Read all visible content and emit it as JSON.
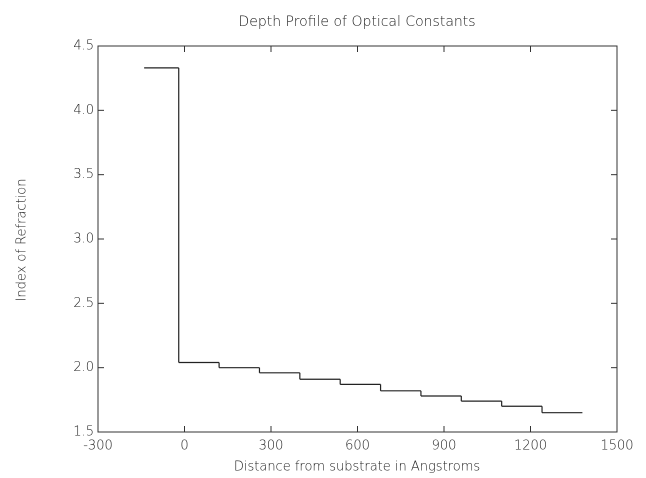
{
  "chart_data": {
    "type": "step",
    "title": "Depth Profile of Optical Constants",
    "x_label": "Distance from substrate in Angstroms",
    "y_label": "Index of Refraction",
    "edges": [
      -140,
      -20,
      120,
      260,
      400,
      540,
      680,
      820,
      960,
      1100,
      1240,
      1380
    ],
    "values": [
      4.33,
      2.04,
      2.0,
      1.96,
      1.91,
      1.87,
      1.82,
      1.78,
      1.74,
      1.7,
      1.65
    ],
    "color": "#222222",
    "xlim": [
      -300,
      1500
    ],
    "xticks": [
      -300,
      0,
      300,
      600,
      900,
      1200,
      1500
    ],
    "ylim": [
      1.5,
      4.5
    ],
    "yticks": [
      1.5,
      {
        "value": 2,
        "label": "2.0"
      },
      2.5,
      {
        "value": 3,
        "label": "3.0"
      },
      3.5,
      {
        "value": 4,
        "label": "4.0"
      },
      4.5
    ]
  }
}
